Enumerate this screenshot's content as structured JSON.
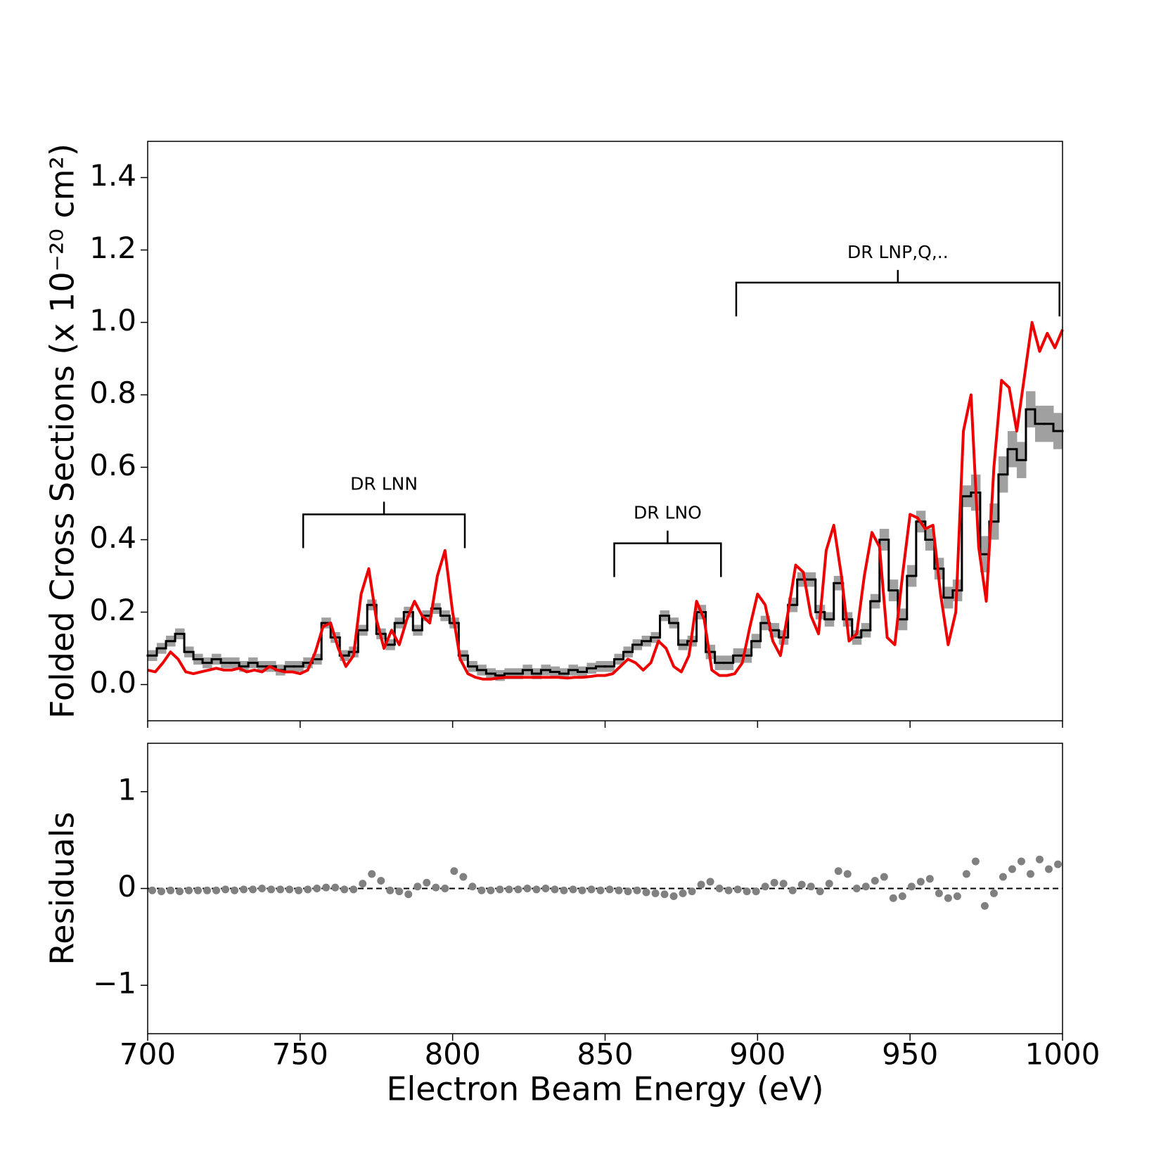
{
  "chart_data": [
    {
      "type": "line",
      "ylabel": "Folded Cross Sections (x 10⁻²⁰ cm²)",
      "xlim": [
        700,
        1000
      ],
      "xticks": [
        700,
        750,
        800,
        850,
        900,
        950,
        1000
      ],
      "ylim": [
        -0.1,
        1.5
      ],
      "yticks": [
        {
          "value": 0,
          "label": "0.0"
        },
        0.2,
        0.4,
        0.6,
        0.8,
        {
          "value": 1,
          "label": "1.0"
        },
        1.2,
        1.4
      ],
      "series": [
        {
          "color": "#000000",
          "error_color": "#a0a0a0",
          "bins": [
            700,
            703,
            706,
            709,
            712,
            715,
            718,
            721,
            724,
            727,
            730,
            733,
            736,
            739,
            742,
            745,
            748,
            751,
            754,
            757,
            760,
            763,
            766,
            769,
            772,
            775,
            778,
            781,
            784,
            787,
            790,
            793,
            796,
            799,
            802,
            805,
            808,
            811,
            814,
            817,
            820,
            823,
            826,
            829,
            832,
            835,
            838,
            841,
            844,
            847,
            850,
            853,
            856,
            859,
            862,
            865,
            868,
            871,
            874,
            877,
            880,
            883,
            886,
            889,
            892,
            895,
            898,
            901,
            904,
            907,
            910,
            913,
            916,
            919,
            922,
            925,
            928,
            931,
            934,
            937,
            940,
            943,
            946,
            949,
            952,
            955,
            958,
            961,
            964,
            967,
            970,
            973,
            976,
            979,
            982,
            985,
            988,
            991,
            994,
            997,
            1000
          ],
          "values": [
            0.08,
            0.1,
            0.12,
            0.14,
            0.09,
            0.07,
            0.06,
            0.07,
            0.06,
            0.06,
            0.05,
            0.06,
            0.05,
            0.05,
            0.04,
            0.05,
            0.05,
            0.06,
            0.07,
            0.17,
            0.13,
            0.08,
            0.09,
            0.15,
            0.22,
            0.14,
            0.11,
            0.17,
            0.2,
            0.15,
            0.19,
            0.21,
            0.19,
            0.17,
            0.08,
            0.05,
            0.04,
            0.03,
            0.025,
            0.03,
            0.03,
            0.04,
            0.03,
            0.04,
            0.035,
            0.03,
            0.04,
            0.035,
            0.045,
            0.05,
            0.05,
            0.07,
            0.09,
            0.11,
            0.12,
            0.13,
            0.19,
            0.17,
            0.11,
            0.12,
            0.2,
            0.09,
            0.06,
            0.06,
            0.08,
            0.08,
            0.12,
            0.17,
            0.15,
            0.13,
            0.22,
            0.29,
            0.29,
            0.2,
            0.18,
            0.28,
            0.18,
            0.13,
            0.15,
            0.23,
            0.4,
            0.26,
            0.18,
            0.3,
            0.45,
            0.4,
            0.32,
            0.24,
            0.26,
            0.52,
            0.53,
            0.36,
            0.45,
            0.58,
            0.65,
            0.62,
            0.76,
            0.72,
            0.72,
            0.7
          ],
          "errors": [
            0.015,
            0.015,
            0.015,
            0.015,
            0.015,
            0.015,
            0.015,
            0.015,
            0.015,
            0.015,
            0.015,
            0.015,
            0.015,
            0.015,
            0.015,
            0.015,
            0.015,
            0.015,
            0.015,
            0.015,
            0.015,
            0.015,
            0.015,
            0.015,
            0.015,
            0.015,
            0.015,
            0.015,
            0.015,
            0.015,
            0.015,
            0.015,
            0.015,
            0.015,
            0.015,
            0.015,
            0.015,
            0.015,
            0.015,
            0.015,
            0.015,
            0.015,
            0.015,
            0.015,
            0.015,
            0.015,
            0.015,
            0.015,
            0.015,
            0.015,
            0.015,
            0.015,
            0.015,
            0.015,
            0.015,
            0.015,
            0.015,
            0.015,
            0.015,
            0.015,
            0.02,
            0.02,
            0.02,
            0.02,
            0.02,
            0.02,
            0.02,
            0.02,
            0.02,
            0.02,
            0.02,
            0.02,
            0.02,
            0.02,
            0.02,
            0.02,
            0.02,
            0.02,
            0.02,
            0.02,
            0.03,
            0.03,
            0.03,
            0.03,
            0.03,
            0.03,
            0.03,
            0.03,
            0.03,
            0.03,
            0.05,
            0.05,
            0.05,
            0.05,
            0.05,
            0.05,
            0.05,
            0.05,
            0.05,
            0.05
          ]
        },
        {
          "color": "#ee0000",
          "x": [
            700,
            702.5,
            705,
            707.5,
            710,
            712.5,
            715,
            717.5,
            720,
            722.5,
            725,
            727.5,
            730,
            732.5,
            735,
            737.5,
            740,
            742.5,
            745,
            747.5,
            750,
            752.5,
            755,
            757.5,
            760,
            762.5,
            765,
            767.5,
            770,
            772.5,
            775,
            777.5,
            780,
            782.5,
            785,
            787.5,
            790,
            792.5,
            795,
            797.5,
            800,
            802.5,
            805,
            807.5,
            810,
            812.5,
            815,
            817.5,
            820,
            822.5,
            825,
            827.5,
            830,
            832.5,
            835,
            837.5,
            840,
            842.5,
            845,
            847.5,
            850,
            852.5,
            855,
            857.5,
            860,
            862.5,
            865,
            867.5,
            870,
            872.5,
            875,
            877.5,
            880,
            882.5,
            885,
            887.5,
            890,
            892.5,
            895,
            897.5,
            900,
            902.5,
            905,
            907.5,
            910,
            912.5,
            915,
            917.5,
            920,
            922.5,
            925,
            927.5,
            930,
            932.5,
            935,
            937.5,
            940,
            942.5,
            945,
            947.5,
            950,
            952.5,
            955,
            957.5,
            960,
            962.5,
            965,
            967.5,
            970,
            972.5,
            975,
            977.5,
            980,
            982.5,
            985,
            987.5,
            990,
            992.5,
            995,
            997.5,
            1000
          ],
          "values": [
            0.04,
            0.035,
            0.06,
            0.09,
            0.07,
            0.035,
            0.03,
            0.035,
            0.04,
            0.045,
            0.04,
            0.04,
            0.045,
            0.035,
            0.04,
            0.035,
            0.05,
            0.04,
            0.035,
            0.035,
            0.03,
            0.04,
            0.09,
            0.16,
            0.17,
            0.1,
            0.05,
            0.08,
            0.25,
            0.32,
            0.18,
            0.1,
            0.15,
            0.11,
            0.18,
            0.23,
            0.19,
            0.17,
            0.3,
            0.37,
            0.2,
            0.07,
            0.03,
            0.02,
            0.015,
            0.015,
            0.018,
            0.02,
            0.02,
            0.02,
            0.02,
            0.02,
            0.02,
            0.02,
            0.02,
            0.018,
            0.02,
            0.02,
            0.022,
            0.025,
            0.025,
            0.03,
            0.05,
            0.07,
            0.06,
            0.04,
            0.06,
            0.12,
            0.1,
            0.05,
            0.035,
            0.08,
            0.23,
            0.18,
            0.04,
            0.025,
            0.025,
            0.03,
            0.06,
            0.16,
            0.25,
            0.22,
            0.12,
            0.08,
            0.2,
            0.33,
            0.31,
            0.19,
            0.14,
            0.37,
            0.44,
            0.3,
            0.12,
            0.14,
            0.3,
            0.42,
            0.38,
            0.13,
            0.11,
            0.3,
            0.47,
            0.46,
            0.43,
            0.44,
            0.25,
            0.11,
            0.2,
            0.7,
            0.8,
            0.38,
            0.23,
            0.6,
            0.84,
            0.82,
            0.7,
            0.85,
            1.0,
            0.92,
            0.97,
            0.93,
            0.98
          ]
        }
      ],
      "annotations": [
        {
          "text": "DR LNN",
          "span": [
            751,
            804
          ],
          "y": 0.47
        },
        {
          "text": "DR LNO",
          "span": [
            853,
            888
          ],
          "y": 0.39
        },
        {
          "text": "DR LNP,Q,..",
          "span": [
            893,
            999
          ],
          "y": 1.11
        }
      ]
    },
    {
      "type": "scatter",
      "xlabel": "Electron Beam Energy (eV)",
      "ylabel": "Residuals",
      "xlim": [
        700,
        1000
      ],
      "xticks": [
        700,
        750,
        800,
        850,
        900,
        950,
        1000
      ],
      "ylim": [
        -1.5,
        1.5
      ],
      "yticks": [
        {
          "value": -1,
          "label": "−1"
        },
        0,
        1
      ],
      "hline": 0,
      "hline_color": "#000000",
      "color": "#808080",
      "x": [
        701.5,
        704.5,
        707.5,
        710.5,
        713.5,
        716.5,
        719.5,
        722.5,
        725.5,
        728.5,
        731.5,
        734.5,
        737.5,
        740.5,
        743.5,
        746.5,
        749.5,
        752.5,
        755.5,
        758.5,
        761.5,
        764.5,
        767.5,
        770.5,
        773.5,
        776.5,
        779.5,
        782.5,
        785.5,
        788.5,
        791.5,
        794.5,
        797.5,
        800.5,
        803.5,
        806.5,
        809.5,
        812.5,
        815.5,
        818.5,
        821.5,
        824.5,
        827.5,
        830.5,
        833.5,
        836.5,
        839.5,
        842.5,
        845.5,
        848.5,
        851.5,
        854.5,
        857.5,
        860.5,
        863.5,
        866.5,
        869.5,
        872.5,
        875.5,
        878.5,
        881.5,
        884.5,
        887.5,
        890.5,
        893.5,
        896.5,
        899.5,
        902.5,
        905.5,
        908.5,
        911.5,
        914.5,
        917.5,
        920.5,
        923.5,
        926.5,
        929.5,
        932.5,
        935.5,
        938.5,
        941.5,
        944.5,
        947.5,
        950.5,
        953.5,
        956.5,
        959.5,
        962.5,
        965.5,
        968.5,
        971.5,
        974.5,
        977.5,
        980.5,
        983.5,
        986.5,
        989.5,
        992.5,
        995.5,
        998.5
      ],
      "values": [
        -0.02,
        -0.03,
        -0.02,
        -0.03,
        -0.02,
        -0.02,
        -0.02,
        -0.02,
        -0.01,
        -0.02,
        -0.01,
        -0.01,
        0,
        -0.01,
        -0.01,
        -0.01,
        -0.02,
        -0.01,
        0,
        0.01,
        0.01,
        -0.01,
        -0.01,
        0.05,
        0.15,
        0.08,
        -0.02,
        -0.03,
        -0.06,
        0.02,
        0.06,
        0.01,
        0,
        0.18,
        0.12,
        0.02,
        -0.02,
        -0.02,
        -0.01,
        -0.01,
        -0.01,
        0,
        -0.01,
        0,
        -0.01,
        -0.02,
        -0.01,
        -0.02,
        -0.01,
        -0.02,
        -0.01,
        -0.02,
        -0.03,
        -0.02,
        -0.04,
        -0.05,
        -0.06,
        -0.08,
        -0.05,
        -0.03,
        0.04,
        0.07,
        0,
        -0.02,
        -0.01,
        -0.03,
        -0.03,
        0.02,
        0.06,
        0.05,
        -0.02,
        0.04,
        0.02,
        -0.03,
        0.05,
        0.18,
        0.15,
        0,
        0.02,
        0.08,
        0.12,
        -0.1,
        -0.08,
        0.02,
        0.07,
        0.1,
        -0.05,
        -0.1,
        -0.08,
        0.15,
        0.28,
        -0.18,
        -0.05,
        0.12,
        0.2,
        0.28,
        0.15,
        0.3,
        0.2,
        0.25
      ]
    }
  ]
}
